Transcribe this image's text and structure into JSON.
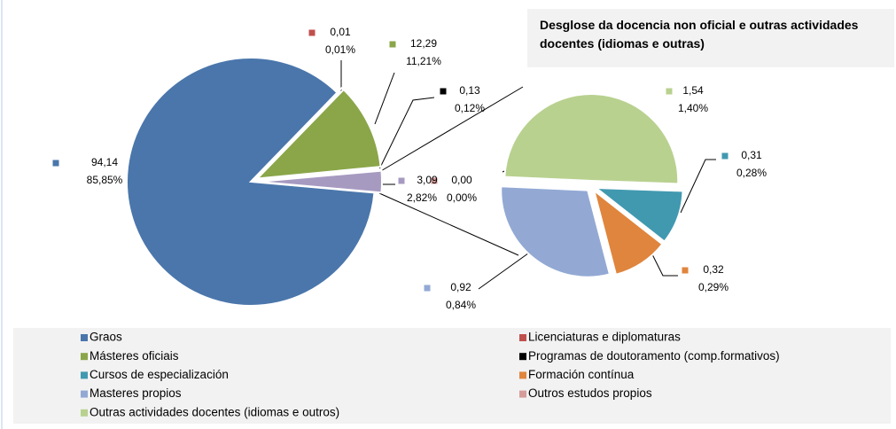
{
  "chart_data": {
    "type": "pie-of-pie",
    "title": "Desglose da docencia non oficial e outras actividades docentes (idiomas  e outras)",
    "categories": [
      "Graos",
      "Licenciaturas e diplomaturas",
      "Másteres oficiais",
      "Programas de doutoramento (comp.formativos)",
      "Cursos de especialización",
      "Formación contínua",
      "Masteres propios",
      "Outros estudos propios",
      "Outras actividades docentes (idiomas e outros)"
    ],
    "colors": [
      "#4a76ab",
      "#c0504d",
      "#8aa649",
      "#000000",
      "#4199b0",
      "#e0853d",
      "#93a9d4",
      "#d59c9a",
      "#b8d18f"
    ],
    "values": [
      94.14,
      0.01,
      12.29,
      0.13,
      0.31,
      0.32,
      0.92,
      0.0,
      1.54
    ],
    "value_labels": [
      "94,14",
      "0,01",
      "12,29",
      "0,13",
      "0,31",
      "0,32",
      "0,92",
      "0,00",
      "1,54"
    ],
    "percents": [
      85.85,
      0.01,
      11.21,
      0.12,
      0.28,
      0.29,
      0.84,
      0.0,
      1.4
    ],
    "percent_labels": [
      "85,85%",
      "0,01%",
      "11,21%",
      "0,12%",
      "0,28%",
      "0,29%",
      "0,84%",
      "0,00%",
      "1,40%"
    ],
    "secondary": [
      false,
      false,
      false,
      false,
      true,
      true,
      true,
      true,
      true
    ],
    "other": {
      "value": 3.09,
      "value_label": "3,09",
      "percent": 2.82,
      "percent_label": "2,82%"
    },
    "legend": "bottom"
  }
}
